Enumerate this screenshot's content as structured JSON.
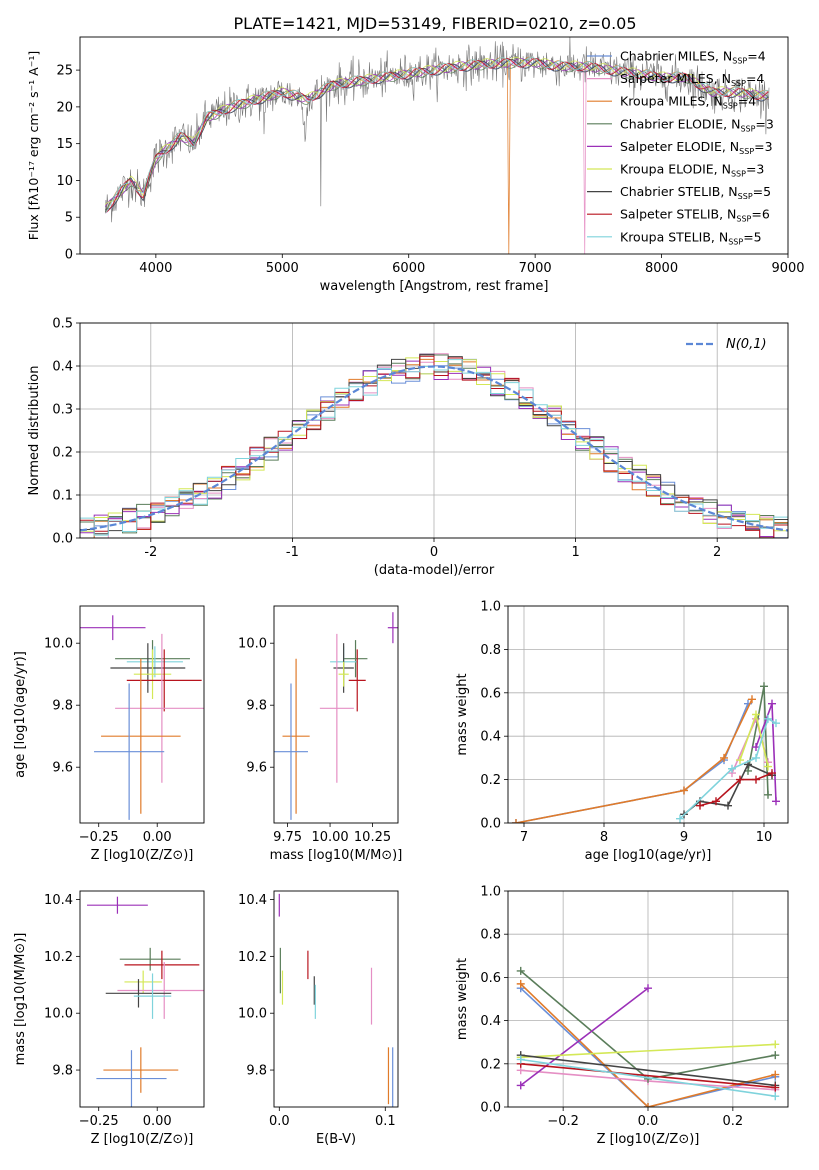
{
  "colors": {
    "chabrier_miles": "#6a8fd8",
    "salpeter_miles": "#e58fc4",
    "kroupa_miles": "#e07b2a",
    "chabrier_elodie": "#5a7d5a",
    "salpeter_elodie": "#9b30b8",
    "kroupa_elodie": "#d4e857",
    "chabrier_stelib": "#444444",
    "salpeter_stelib": "#b8141e",
    "kroupa_stelib": "#7fd3dc"
  },
  "chart_data": [
    {
      "id": "spectrum",
      "type": "line",
      "title": "PLATE=1421, MJD=53149, FIBERID=0210, z=0.05",
      "xlabel": "wavelength [Angstrom, rest frame]",
      "ylabel": "Flux [fλ10⁻¹⁷ erg cm⁻² s⁻¹ A⁻¹]",
      "xlim": [
        3400,
        9000
      ],
      "ylim": [
        0,
        29.5
      ],
      "xticks": [
        4000,
        5000,
        6000,
        7000,
        8000,
        9000
      ],
      "yticks": [
        0,
        5,
        10,
        15,
        20,
        25
      ],
      "legend_position": "right",
      "continuum": [
        [
          3600,
          6
        ],
        [
          3700,
          8
        ],
        [
          3800,
          10
        ],
        [
          3900,
          8
        ],
        [
          4000,
          13
        ],
        [
          4100,
          14.5
        ],
        [
          4200,
          16
        ],
        [
          4300,
          15
        ],
        [
          4400,
          18.5
        ],
        [
          4600,
          20
        ],
        [
          4800,
          21
        ],
        [
          5000,
          22
        ],
        [
          5200,
          21
        ],
        [
          5400,
          23
        ],
        [
          5600,
          23.5
        ],
        [
          5800,
          24
        ],
        [
          6000,
          24.5
        ],
        [
          6200,
          25
        ],
        [
          6400,
          25.5
        ],
        [
          6600,
          25.8
        ],
        [
          6800,
          26
        ],
        [
          7000,
          26
        ],
        [
          7200,
          25.5
        ],
        [
          7400,
          25.5
        ],
        [
          7600,
          25
        ],
        [
          7800,
          24.5
        ],
        [
          8000,
          24
        ],
        [
          8200,
          24
        ],
        [
          8400,
          22
        ],
        [
          8600,
          22
        ],
        [
          8800,
          21.5
        ]
      ],
      "series": [
        {
          "name": "Chabrier MILES, N_SSP=4",
          "color_key": "chabrier_miles"
        },
        {
          "name": "Salpeter MILES, N_SSP=4",
          "color_key": "salpeter_miles"
        },
        {
          "name": "Kroupa MILES, N_SSP=4",
          "color_key": "kroupa_miles"
        },
        {
          "name": "Chabrier ELODIE, N_SSP=3",
          "color_key": "chabrier_elodie"
        },
        {
          "name": "Salpeter ELODIE, N_SSP=3",
          "color_key": "salpeter_elodie"
        },
        {
          "name": "Kroupa ELODIE, N_SSP=3",
          "color_key": "kroupa_elodie"
        },
        {
          "name": "Chabrier STELIB, N_SSP=5",
          "color_key": "chabrier_stelib"
        },
        {
          "name": "Salpeter STELIB, N_SSP=6",
          "color_key": "salpeter_stelib"
        },
        {
          "name": "Kroupa STELIB, N_SSP=5",
          "color_key": "kroupa_stelib"
        }
      ]
    },
    {
      "id": "residuals",
      "type": "line",
      "xlabel": "(data-model)/error",
      "ylabel": "Normed distribution",
      "xlim": [
        -2.5,
        2.5
      ],
      "ylim": [
        0,
        0.5
      ],
      "xticks": [
        -2,
        -1,
        0,
        1,
        2
      ],
      "yticks": [
        0.0,
        0.1,
        0.2,
        0.3,
        0.4,
        0.5
      ],
      "grid": true,
      "legend": "N(0,1)",
      "legend_position": "top-right",
      "bin_width": 0.1
    },
    {
      "id": "age_vs_z",
      "type": "scatter",
      "xlabel": "Z [log10(Z/Z⊙)]",
      "ylabel": "age  [log10(age/yr)]",
      "xlim": [
        -0.33,
        0.2
      ],
      "ylim": [
        9.42,
        10.12
      ],
      "xticks": [
        -0.25,
        0.0
      ],
      "xtick_labels": [
        "−0.25",
        "0.00"
      ],
      "yticks": [
        9.6,
        9.8,
        10.0
      ],
      "points": [
        {
          "x": -0.19,
          "y": 10.05,
          "xerr": 0.14,
          "yerr": 0.04,
          "c": "salpeter_elodie"
        },
        {
          "x": -0.02,
          "y": 9.95,
          "xerr": 0.16,
          "yerr": 0.06,
          "c": "chabrier_elodie"
        },
        {
          "x": -0.01,
          "y": 9.94,
          "xerr": 0.12,
          "yerr": 0.05,
          "c": "kroupa_stelib"
        },
        {
          "x": -0.04,
          "y": 9.92,
          "xerr": 0.16,
          "yerr": 0.08,
          "c": "chabrier_stelib"
        },
        {
          "x": -0.02,
          "y": 9.9,
          "xerr": 0.08,
          "yerr": 0.08,
          "c": "kroupa_elodie"
        },
        {
          "x": 0.03,
          "y": 9.88,
          "xerr": 0.16,
          "yerr": 0.1,
          "c": "salpeter_stelib"
        },
        {
          "x": 0.02,
          "y": 9.79,
          "xerr": 0.2,
          "yerr": 0.24,
          "c": "salpeter_miles"
        },
        {
          "x": -0.07,
          "y": 9.7,
          "xerr": 0.17,
          "yerr": 0.25,
          "c": "kroupa_miles"
        },
        {
          "x": -0.12,
          "y": 9.65,
          "xerr": 0.15,
          "yerr": 0.22,
          "c": "chabrier_miles"
        }
      ]
    },
    {
      "id": "age_vs_mass",
      "type": "scatter",
      "xlabel": "mass [log10(M/M⊙)]",
      "xlim": [
        9.67,
        10.4
      ],
      "ylim": [
        9.42,
        10.12
      ],
      "xticks": [
        9.75,
        10.0,
        10.25
      ],
      "xtick_labels": [
        "9.75",
        "10.00",
        "10.25"
      ],
      "yticks": [
        9.6,
        9.8,
        10.0
      ],
      "points": [
        {
          "x": 10.37,
          "y": 10.05,
          "xerr": 0.03,
          "yerr": 0.05,
          "c": "salpeter_elodie"
        },
        {
          "x": 10.15,
          "y": 9.95,
          "xerr": 0.07,
          "yerr": 0.06,
          "c": "chabrier_elodie"
        },
        {
          "x": 10.08,
          "y": 9.94,
          "xerr": 0.08,
          "yerr": 0.05,
          "c": "kroupa_stelib"
        },
        {
          "x": 10.08,
          "y": 9.92,
          "xerr": 0.06,
          "yerr": 0.08,
          "c": "chabrier_stelib"
        },
        {
          "x": 10.08,
          "y": 9.9,
          "xerr": 0.03,
          "yerr": 0.04,
          "c": "kroupa_elodie"
        },
        {
          "x": 10.16,
          "y": 9.88,
          "xerr": 0.05,
          "yerr": 0.1,
          "c": "salpeter_stelib"
        },
        {
          "x": 10.04,
          "y": 9.79,
          "xerr": 0.1,
          "yerr": 0.24,
          "c": "salpeter_miles"
        },
        {
          "x": 9.8,
          "y": 9.7,
          "xerr": 0.08,
          "yerr": 0.25,
          "c": "kroupa_miles"
        },
        {
          "x": 9.77,
          "y": 9.65,
          "xerr": 0.1,
          "yerr": 0.22,
          "c": "chabrier_miles"
        }
      ]
    },
    {
      "id": "weight_vs_age",
      "type": "line",
      "xlabel": "age  [log10(age/yr)]",
      "ylabel": "mass weight",
      "xlim": [
        6.8,
        10.3
      ],
      "ylim": [
        0,
        1.0
      ],
      "xticks": [
        7,
        8,
        9,
        10
      ],
      "yticks": [
        0.0,
        0.2,
        0.4,
        0.6,
        0.8,
        1.0
      ],
      "grid": true,
      "series": [
        {
          "c": "chabrier_miles",
          "x": [
            6.9,
            9.0,
            9.5,
            9.8
          ],
          "y": [
            0.0,
            0.15,
            0.29,
            0.55
          ]
        },
        {
          "c": "kroupa_miles",
          "x": [
            6.9,
            9.0,
            9.5,
            9.85
          ],
          "y": [
            0.0,
            0.15,
            0.3,
            0.57
          ]
        },
        {
          "c": "salpeter_miles",
          "x": [
            9.6,
            9.9,
            10.05
          ],
          "y": [
            0.23,
            0.48,
            0.28
          ]
        },
        {
          "c": "chabrier_elodie",
          "x": [
            9.8,
            10.0,
            10.05
          ],
          "y": [
            0.24,
            0.63,
            0.13
          ]
        },
        {
          "c": "salpeter_elodie",
          "x": [
            9.9,
            10.1,
            10.15
          ],
          "y": [
            0.35,
            0.55,
            0.1
          ]
        },
        {
          "c": "kroupa_elodie",
          "x": [
            9.7,
            9.9,
            10.05
          ],
          "y": [
            0.29,
            0.5,
            0.26
          ]
        },
        {
          "c": "chabrier_stelib",
          "x": [
            9.0,
            9.2,
            9.55,
            9.8,
            10.1
          ],
          "y": [
            0.04,
            0.1,
            0.08,
            0.27,
            0.22
          ]
        },
        {
          "c": "salpeter_stelib",
          "x": [
            9.2,
            9.4,
            9.7,
            9.9,
            10.1
          ],
          "y": [
            0.08,
            0.1,
            0.2,
            0.2,
            0.23
          ]
        },
        {
          "c": "kroupa_stelib",
          "x": [
            8.95,
            9.6,
            9.9,
            10.05,
            10.15
          ],
          "y": [
            0.02,
            0.25,
            0.3,
            0.48,
            0.46
          ]
        }
      ]
    },
    {
      "id": "mass_vs_z",
      "type": "scatter",
      "xlabel": "Z [log10(Z/Z⊙)]",
      "ylabel": "mass [log10(M/M⊙)]",
      "xlim": [
        -0.33,
        0.2
      ],
      "ylim": [
        9.67,
        10.43
      ],
      "xticks": [
        -0.25,
        0.0
      ],
      "xtick_labels": [
        "−0.25",
        "0.00"
      ],
      "yticks": [
        9.8,
        10.0,
        10.2,
        10.4
      ],
      "points": [
        {
          "x": -0.17,
          "y": 10.38,
          "xerr": 0.13,
          "yerr": 0.03,
          "c": "salpeter_elodie"
        },
        {
          "x": -0.03,
          "y": 10.19,
          "xerr": 0.13,
          "yerr": 0.04,
          "c": "chabrier_elodie"
        },
        {
          "x": 0.02,
          "y": 10.17,
          "xerr": 0.16,
          "yerr": 0.05,
          "c": "salpeter_stelib"
        },
        {
          "x": -0.06,
          "y": 10.11,
          "xerr": 0.08,
          "yerr": 0.04,
          "c": "kroupa_elodie"
        },
        {
          "x": 0.03,
          "y": 10.08,
          "xerr": 0.2,
          "yerr": 0.1,
          "c": "salpeter_miles"
        },
        {
          "x": -0.08,
          "y": 10.07,
          "xerr": 0.14,
          "yerr": 0.05,
          "c": "chabrier_stelib"
        },
        {
          "x": -0.02,
          "y": 10.06,
          "xerr": 0.08,
          "yerr": 0.08,
          "c": "kroupa_stelib"
        },
        {
          "x": -0.07,
          "y": 9.8,
          "xerr": 0.16,
          "yerr": 0.08,
          "c": "kroupa_miles"
        },
        {
          "x": -0.11,
          "y": 9.77,
          "xerr": 0.15,
          "yerr": 0.1,
          "c": "chabrier_miles"
        }
      ]
    },
    {
      "id": "mass_vs_ebv",
      "type": "scatter",
      "xlabel": "E(B-V)",
      "xlim": [
        -0.005,
        0.112
      ],
      "ylim": [
        9.67,
        10.43
      ],
      "xticks": [
        0.0,
        0.1
      ],
      "xtick_labels": [
        "0.0",
        "0.1"
      ],
      "yticks": [
        9.8,
        10.0,
        10.2,
        10.4
      ],
      "points": [
        {
          "x": 0.0,
          "y": 10.38,
          "yerr": 0.04,
          "c": "salpeter_elodie"
        },
        {
          "x": 0.001,
          "y": 10.15,
          "yerr": 0.08,
          "c": "chabrier_elodie"
        },
        {
          "x": 0.003,
          "y": 10.09,
          "yerr": 0.06,
          "c": "kroupa_elodie"
        },
        {
          "x": 0.027,
          "y": 10.17,
          "yerr": 0.05,
          "c": "salpeter_stelib"
        },
        {
          "x": 0.033,
          "y": 10.08,
          "yerr": 0.05,
          "c": "chabrier_stelib"
        },
        {
          "x": 0.034,
          "y": 10.04,
          "yerr": 0.06,
          "c": "kroupa_stelib"
        },
        {
          "x": 0.087,
          "y": 10.06,
          "yerr": 0.1,
          "c": "salpeter_miles"
        },
        {
          "x": 0.103,
          "y": 9.78,
          "yerr": 0.1,
          "c": "kroupa_miles"
        },
        {
          "x": 0.107,
          "y": 9.76,
          "yerr": 0.12,
          "c": "chabrier_miles"
        }
      ]
    },
    {
      "id": "weight_vs_z",
      "type": "line",
      "xlabel": "Z [log10(Z/Z⊙)]",
      "ylabel": "mass weight",
      "xlim": [
        -0.33,
        0.33
      ],
      "ylim": [
        0,
        1.0
      ],
      "xticks": [
        -0.2,
        0.0,
        0.2
      ],
      "xtick_labels": [
        "−0.2",
        "0.0",
        "0.2"
      ],
      "yticks": [
        0.0,
        0.2,
        0.4,
        0.6,
        0.8,
        1.0
      ],
      "grid": true,
      "series": [
        {
          "c": "chabrier_miles",
          "x": [
            -0.3,
            0.0,
            0.3
          ],
          "y": [
            0.55,
            0.0,
            0.14
          ]
        },
        {
          "c": "kroupa_miles",
          "x": [
            -0.3,
            0.0,
            0.3
          ],
          "y": [
            0.57,
            0.0,
            0.15
          ]
        },
        {
          "c": "salpeter_miles",
          "x": [
            -0.3,
            0.0,
            0.3
          ],
          "y": [
            0.17,
            0.12,
            0.08
          ]
        },
        {
          "c": "chabrier_elodie",
          "x": [
            -0.3,
            0.0,
            0.3
          ],
          "y": [
            0.63,
            0.13,
            0.24
          ]
        },
        {
          "c": "salpeter_elodie",
          "x": [
            -0.3,
            0.0
          ],
          "y": [
            0.1,
            0.55
          ]
        },
        {
          "c": "kroupa_elodie",
          "x": [
            -0.3,
            0.3
          ],
          "y": [
            0.23,
            0.29
          ]
        },
        {
          "c": "chabrier_stelib",
          "x": [
            -0.3,
            0.3
          ],
          "y": [
            0.24,
            0.1
          ]
        },
        {
          "c": "salpeter_stelib",
          "x": [
            -0.3,
            0.3
          ],
          "y": [
            0.2,
            0.09
          ]
        },
        {
          "c": "kroupa_stelib",
          "x": [
            -0.3,
            0.3
          ],
          "y": [
            0.22,
            0.05
          ]
        }
      ]
    }
  ]
}
